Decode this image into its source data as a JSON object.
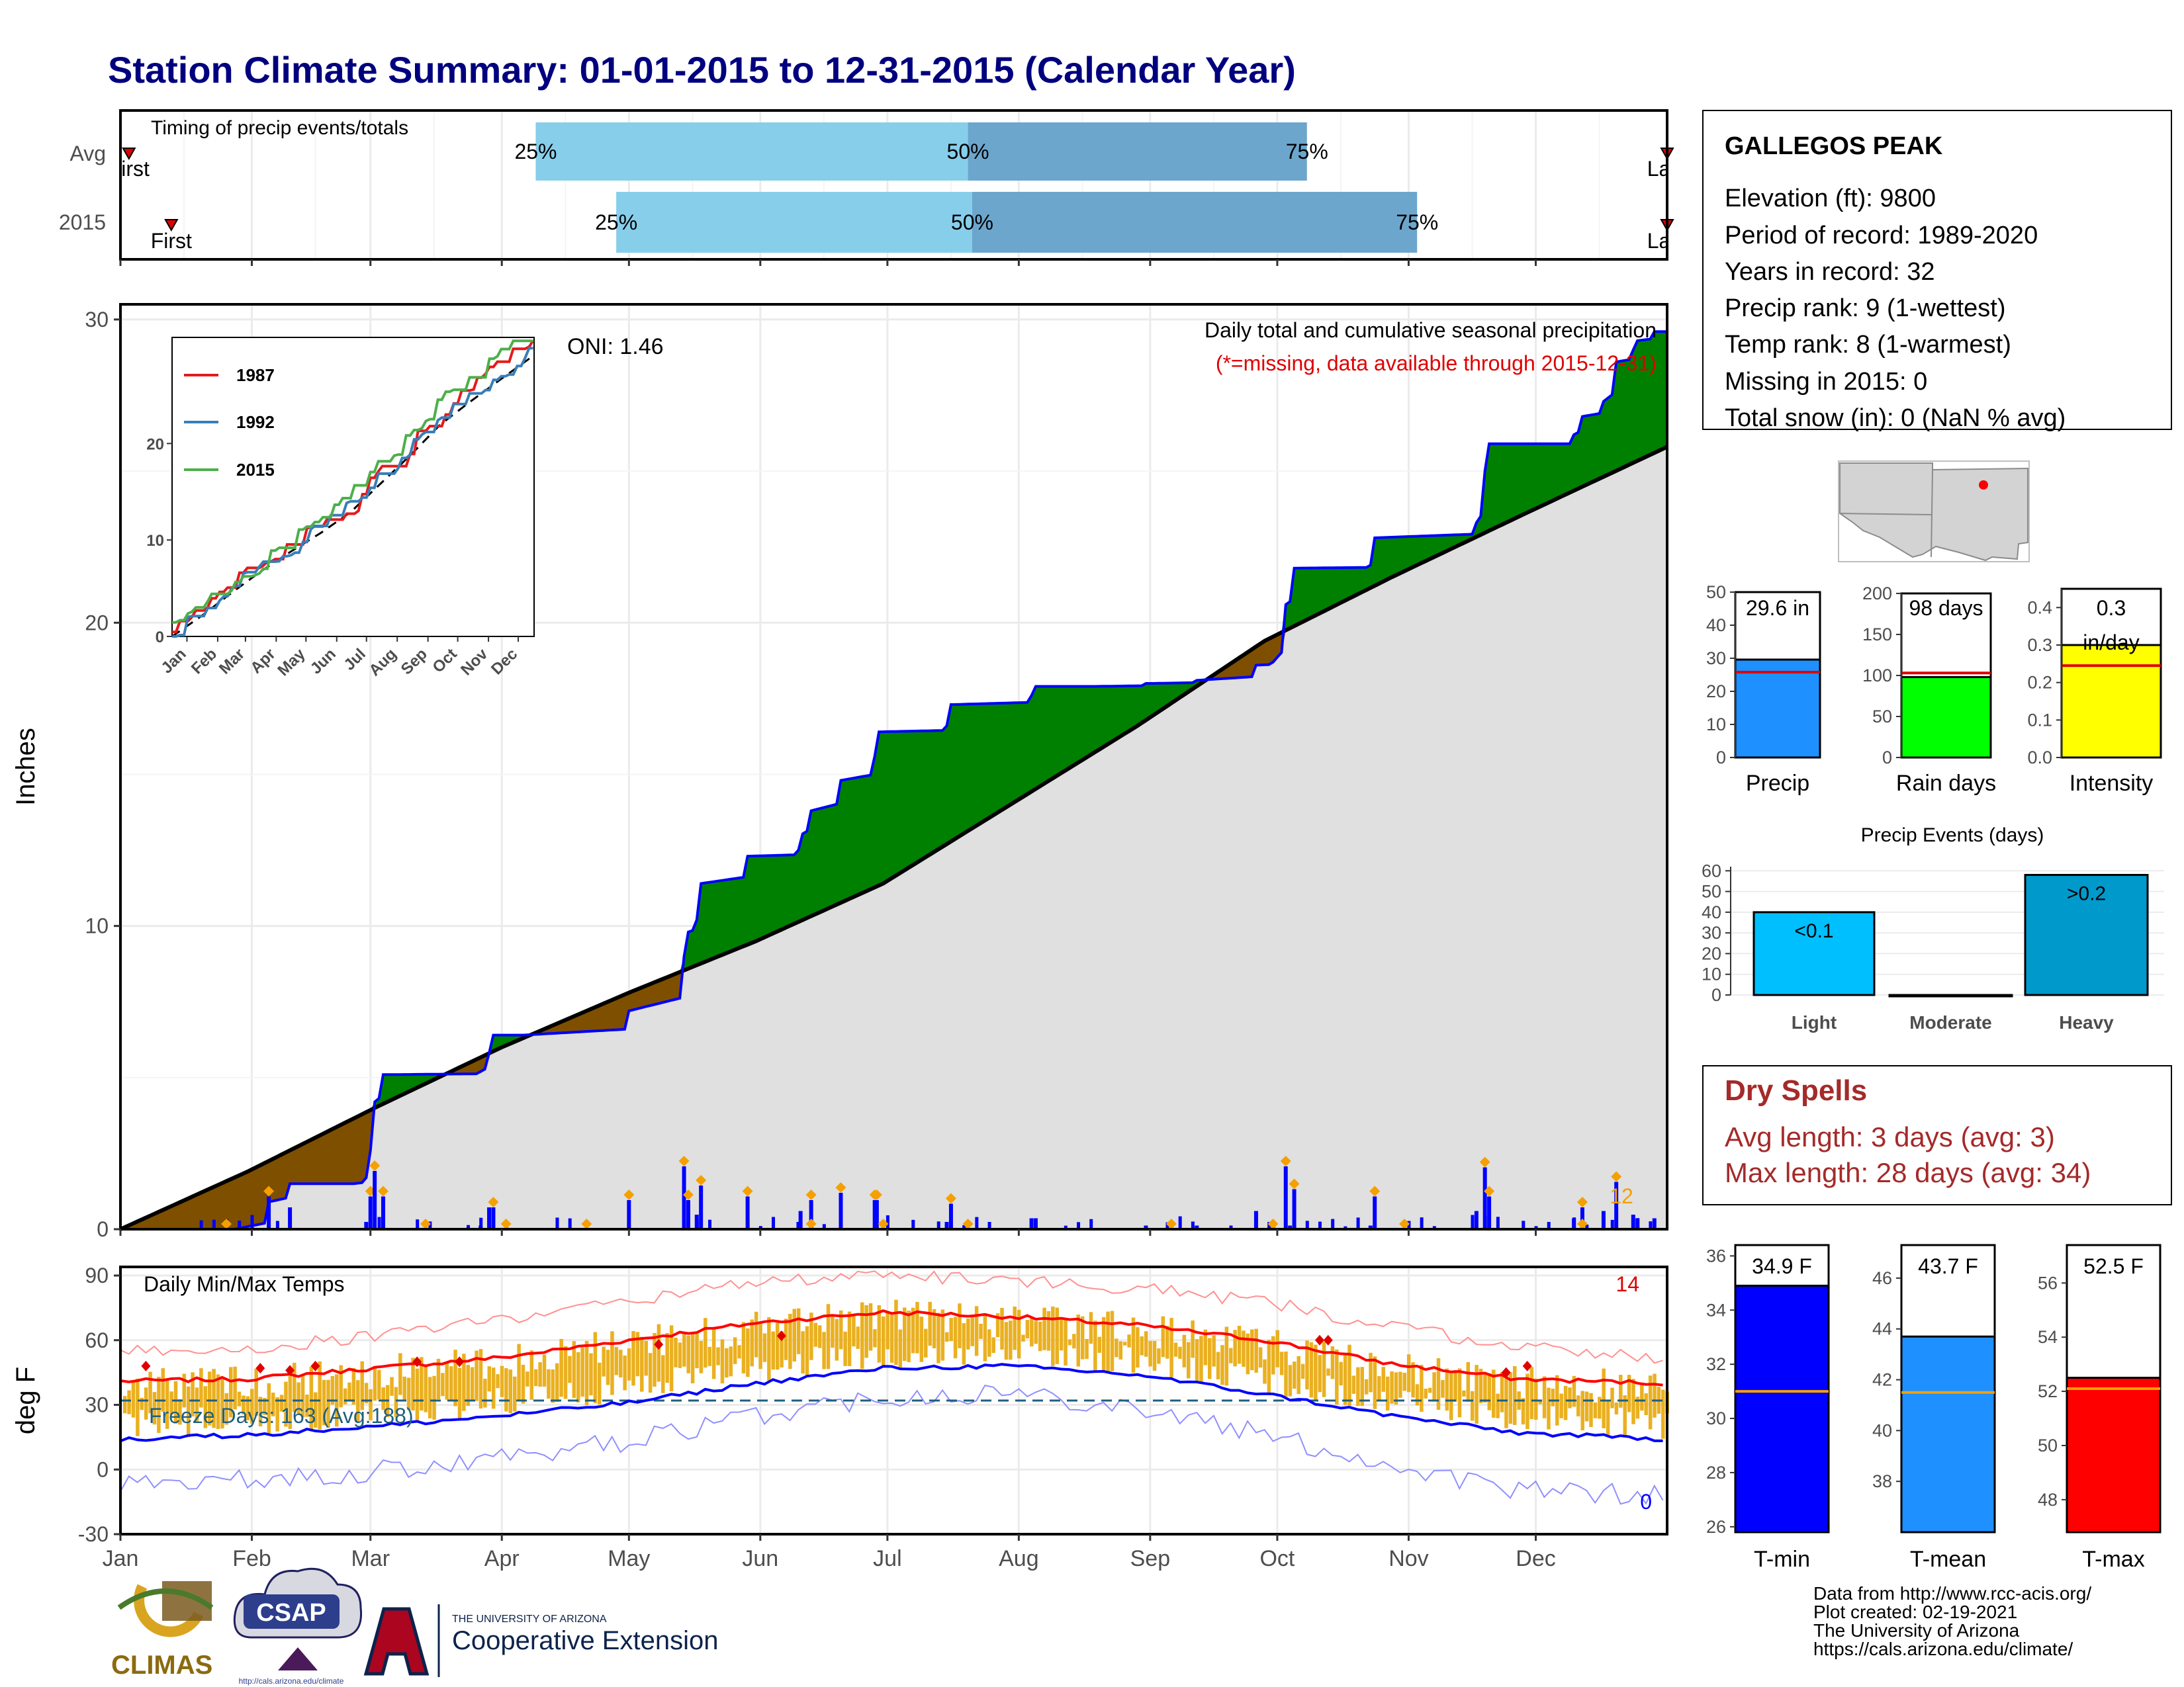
{
  "page": {
    "title": "Station Climate Summary: 01-01-2015 to 12-31-2015 (Calendar Year)"
  },
  "colors": {
    "title": "#00007F",
    "precip_green": "#008000",
    "precip_brown": "#7F4F00",
    "precip_gray": "#E0E0E0",
    "blue_line": "#0000FF",
    "missing_red": "#E00000",
    "dry_spells": "#A52A2A",
    "orange": "#F5A000",
    "bar_light": "#87CEEB",
    "bar_dark": "#6CA6CD"
  },
  "months": [
    "Jan",
    "Feb",
    "Mar",
    "Apr",
    "May",
    "Jun",
    "Jul",
    "Aug",
    "Sep",
    "Oct",
    "Nov",
    "Dec"
  ],
  "timing": {
    "label": "Timing of precip events/totals",
    "rows": [
      {
        "name": "Avg",
        "first_label": "First",
        "last_label": "Last",
        "first_doy": 2,
        "last_doy": 365,
        "p25_label": "25%",
        "p50_label": "50%",
        "p75_label": "75%",
        "p25": 98,
        "p50": 200,
        "p75": 280
      },
      {
        "name": "2015",
        "first_label": "First",
        "last_label": "Last",
        "first_doy": 12,
        "last_doy": 365,
        "p25_label": "25%",
        "p50_label": "50%",
        "p75_label": "75%",
        "p25": 117,
        "p50": 201,
        "p75": 306
      }
    ]
  },
  "precip_panel": {
    "title": "Daily total and cumulative seasonal precipitation",
    "subtitle": "(*=missing, data available through 2015-12-31)",
    "oni_label": "ONI: 1.46",
    "ylabel": "Inches",
    "yticks": [
      0,
      10,
      20,
      30
    ],
    "corner_count": "12",
    "inset_legend": [
      "1987",
      "1992",
      "2015"
    ],
    "inset_xticks": [
      "Jan",
      "Feb",
      "Mar",
      "Apr",
      "May",
      "Jun",
      "Jul",
      "Aug",
      "Sep",
      "Oct",
      "Nov",
      "Dec"
    ],
    "inset_yticks": [
      0,
      10,
      20
    ]
  },
  "temp_panel": {
    "title": "Daily Min/Max Temps",
    "ylabel": "deg F",
    "yticks": [
      -30,
      0,
      30,
      60,
      90
    ],
    "freeze_label": "Freeze Days: 163 (Avg:188)",
    "count_high": "14",
    "count_low": "0"
  },
  "info": {
    "station": "GALLEGOS PEAK",
    "lines": [
      "Elevation (ft): 9800",
      "Period of record: 1989-2020",
      "Years in record: 32",
      "Precip rank: 9 (1-wettest)",
      "Temp rank: 8 (1-warmest)",
      "Missing in 2015: 0",
      "Total snow (in): 0 (NaN % avg)"
    ]
  },
  "summary_bars": [
    {
      "name": "Precip",
      "label": "29.6 in",
      "value": 29.6,
      "avg": 25.8,
      "ymax": 50,
      "yticks": [
        0,
        10,
        20,
        30,
        40,
        50
      ],
      "color": "#1E90FF"
    },
    {
      "name": "Rain days",
      "label": "98 days",
      "value": 98,
      "avg": 103,
      "ymax": 200,
      "yticks": [
        0,
        50,
        100,
        150,
        200
      ],
      "color": "#00FF00"
    },
    {
      "name": "Intensity",
      "label": "0.3\nin/day",
      "value": 0.3,
      "avg": 0.245,
      "ymax": 0.45,
      "yticks": [
        0.0,
        0.1,
        0.2,
        0.3,
        0.4
      ],
      "color": "#FFFF00"
    }
  ],
  "events": {
    "title": "Precip Events (days)",
    "yticks": [
      0,
      10,
      20,
      30,
      40,
      50,
      60
    ],
    "categories": [
      "Light",
      "Moderate",
      "Heavy"
    ],
    "values": [
      40,
      0,
      58
    ],
    "labels": [
      "<0.1",
      "",
      ">0.2"
    ]
  },
  "dry_spells": {
    "title": "Dry Spells",
    "lines": [
      "Avg length: 3 days (avg: 3)",
      "Max length: 28 days (avg: 34)"
    ]
  },
  "temp_bars": [
    {
      "name": "T-min",
      "label": "34.9 F",
      "value": 34.9,
      "avg": 31.0,
      "ylim": [
        25.8,
        36.4
      ],
      "yticks": [
        26,
        28,
        30,
        32,
        34,
        36
      ],
      "color": "#0000FF"
    },
    {
      "name": "T-mean",
      "label": "43.7 F",
      "value": 43.7,
      "avg": 41.5,
      "ylim": [
        36.0,
        47.3
      ],
      "yticks": [
        38,
        40,
        42,
        44,
        46
      ],
      "color": "#1E90FF"
    },
    {
      "name": "T-max",
      "label": "52.5 F",
      "value": 52.5,
      "avg": 52.1,
      "ylim": [
        46.8,
        57.4
      ],
      "yticks": [
        48,
        50,
        52,
        54,
        56
      ],
      "color": "#FF0000"
    }
  ],
  "footer": {
    "lines": [
      "Data from http://www.rcc-acis.org/",
      "Plot created: 02-19-2021",
      "The University of Arizona",
      "https://cals.arizona.edu/climate/"
    ],
    "climas": "CLIMAS",
    "csap": "CSAP",
    "csap_url": "http://cals.arizona.edu/climate",
    "ua_small": "THE UNIVERSITY OF ARIZONA",
    "ua_big": "Cooperative Extension"
  },
  "chart_data": [
    {
      "type": "area",
      "title": "Daily total and cumulative seasonal precipitation",
      "ylabel": "Inches",
      "ylim": [
        0,
        30.5
      ],
      "x_unit": "day of year 2015",
      "series": [
        {
          "name": "2015",
          "x": [
            1,
            27,
            35,
            40,
            55,
            58,
            59,
            60,
            62,
            65,
            85,
            87,
            88,
            95,
            120,
            133,
            134,
            136,
            137,
            148,
            160,
            160.5,
            163,
            170,
            178,
            178.5,
            195,
            196,
            215,
            216,
            225,
            230,
            242,
            244,
            254,
            268,
            272,
            275,
            276,
            277,
            295,
            296,
            320,
            322,
            323,
            342,
            343,
            345,
            350,
            353,
            357,
            358,
            362,
            365
          ],
          "y": [
            0,
            0,
            0.9,
            1.5,
            1.5,
            1.7,
            2.6,
            4.2,
            5.1,
            5.1,
            5.2,
            5.8,
            6.4,
            6.4,
            7.2,
            9.0,
            9.8,
            10.2,
            11.4,
            12.3,
            12.5,
            13.0,
            13.8,
            14.8,
            15.6,
            16.4,
            16.6,
            17.3,
            17.6,
            17.9,
            17.9,
            17.9,
            18.0,
            18.0,
            18.1,
            18.6,
            18.7,
            20.6,
            20.7,
            21.8,
            21.9,
            22.8,
            23.3,
            25.0,
            25.9,
            25.9,
            26.2,
            26.8,
            27.3,
            28.6,
            29.0,
            29.3,
            29.6,
            29.6
          ]
        },
        {
          "name": "Avg",
          "x": [
            0,
            30,
            60,
            90,
            120,
            150,
            180,
            210,
            240,
            270,
            300,
            330,
            365
          ],
          "y": [
            0,
            1.9,
            4.0,
            6.0,
            7.8,
            9.5,
            11.4,
            14.0,
            16.6,
            19.4,
            21.5,
            23.5,
            25.8
          ]
        }
      ]
    },
    {
      "type": "line",
      "title": "Daily Min/Max Temps",
      "ylabel": "deg F",
      "ylim": [
        -30,
        94
      ],
      "x": [
        0,
        30,
        60,
        90,
        120,
        150,
        180,
        210,
        240,
        270,
        300,
        330,
        365
      ],
      "series": [
        {
          "name": "Avg max",
          "values": [
            41,
            42,
            47,
            52,
            60,
            68,
            73,
            71,
            67,
            60,
            49,
            42,
            40
          ]
        },
        {
          "name": "Avg min",
          "values": [
            14,
            16,
            20,
            25,
            31,
            40,
            47,
            48,
            44,
            35,
            25,
            17,
            14
          ]
        },
        {
          "name": "Record high",
          "values": [
            55,
            56,
            62,
            70,
            78,
            87,
            90,
            88,
            84,
            78,
            66,
            57,
            52
          ]
        },
        {
          "name": "Record low",
          "values": [
            -6,
            -5,
            -1,
            5,
            13,
            25,
            34,
            36,
            29,
            16,
            2,
            -10,
            -12
          ]
        },
        {
          "name": "Freeze line",
          "values": [
            32,
            32,
            32,
            32,
            32,
            32,
            32,
            32,
            32,
            32,
            32,
            32,
            32
          ]
        }
      ]
    }
  ]
}
